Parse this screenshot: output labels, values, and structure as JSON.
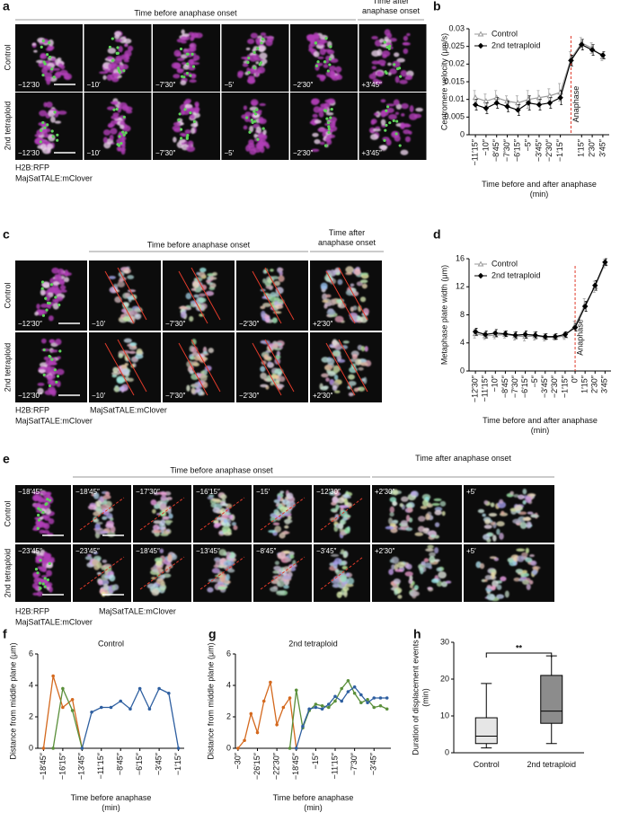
{
  "panel_letters": [
    "a",
    "b",
    "c",
    "d",
    "e",
    "f",
    "g",
    "h"
  ],
  "panel_a": {
    "header_before": "Time before anaphase onset",
    "header_after": "Time after anaphase onset",
    "rows": [
      "Control",
      "2nd tetraploid"
    ],
    "times": [
      [
        "−12′30",
        "−10′",
        "−7′30″",
        "−5′",
        "−2′30″",
        "+3′45″"
      ],
      [
        "−12′30",
        "−10′",
        "−7′30″",
        "−5′",
        "−2′30″",
        "+3′45″"
      ]
    ],
    "legend": [
      "H2B:RFP",
      "MajSatTALE:mClover"
    ]
  },
  "panel_c": {
    "header_before": "Time before anaphase onset",
    "header_after": "Time after anaphase onset",
    "rows": [
      "Control",
      "2nd tetraploid"
    ],
    "times": [
      [
        "−12′30″",
        "−10′",
        "−7′30″",
        "−2′30″",
        "+2′30″"
      ],
      [
        "−12′30″",
        "−10′",
        "−7′30″",
        "−2′30″",
        "+2′30″"
      ]
    ],
    "legend": [
      "H2B:RFP",
      "MajSatTALE:mClover",
      "MajSatTALE:mClover"
    ]
  },
  "panel_e": {
    "header_before": "Time before anaphase onset",
    "header_after": "Time after anaphase onset",
    "rows": [
      "Control",
      "2nd tetraploid"
    ],
    "times": [
      [
        "−18′45″",
        "−18′45″",
        "−17′30″",
        "−16′15″",
        "−15′",
        "−12′30″",
        "+2′30″",
        "+5′"
      ],
      [
        "−23′45″",
        "−23′45″",
        "−18′45″",
        "−13′45″",
        "−8′45″",
        "−3′45″",
        "+2′30″",
        "+5′"
      ]
    ],
    "legend": [
      "H2B:RFP",
      "MajSatTALE:mClover",
      "MajSatTALE:mClover"
    ]
  },
  "chart_data": [
    {
      "type": "line",
      "y_label": "Centromere velocity (μm/s)",
      "x_label": "Time before and after anaphase (min)",
      "annotation": "Anaphase",
      "legend": "top-left",
      "x": [
        -11.25,
        -10,
        -8.75,
        -7.5,
        -6.25,
        -5,
        -3.75,
        -2.5,
        -1.25,
        0,
        1.25,
        2.5,
        3.75
      ],
      "xlim": [
        -12,
        4.5
      ],
      "xticks": [
        {
          "value": -11.25,
          "label": "−11′15″"
        },
        {
          "value": -10,
          "label": "−10″"
        },
        {
          "value": -8.75,
          "label": "−8′45″"
        },
        {
          "value": -7.5,
          "label": "−7′30″"
        },
        {
          "value": -6.25,
          "label": "−6′15″"
        },
        {
          "value": -5,
          "label": "−5″"
        },
        {
          "value": -3.75,
          "label": "−3′45″"
        },
        {
          "value": -2.5,
          "label": "−2′30″"
        },
        {
          "value": -1.25,
          "label": "−1′15″"
        },
        {
          "value": 1.25,
          "label": "1′15″"
        },
        {
          "value": 2.5,
          "label": "2′30″"
        },
        {
          "value": 3.75,
          "label": "3′45″"
        }
      ],
      "ylim": [
        0,
        0.03
      ],
      "yticks": [
        0,
        0.005,
        0.01,
        0.015,
        0.02,
        0.025,
        0.03
      ],
      "series": [
        {
          "name": "Control",
          "color": "#9a9a9a",
          "marker": "triangle",
          "values": [
            0.0105,
            0.0095,
            0.0105,
            0.0095,
            0.009,
            0.01,
            0.0105,
            0.011,
            0.012,
            0.0215,
            0.026,
            0.0245,
            0.022
          ],
          "errors": [
            0.002,
            0.002,
            0.002,
            0.0015,
            0.002,
            0.0025,
            0.002,
            0.002,
            0.0025,
            0.002,
            0.0015,
            0.0015,
            0.001
          ]
        },
        {
          "name": "2nd tetraploid",
          "color": "#000000",
          "marker": "diamond",
          "values": [
            0.0085,
            0.0075,
            0.009,
            0.008,
            0.007,
            0.009,
            0.0085,
            0.009,
            0.0105,
            0.021,
            0.0255,
            0.024,
            0.0225
          ],
          "errors": [
            0.0015,
            0.0015,
            0.0015,
            0.0015,
            0.0015,
            0.002,
            0.0015,
            0.0015,
            0.002,
            0.0015,
            0.0015,
            0.0015,
            0.001
          ]
        }
      ]
    },
    {
      "type": "line",
      "y_label": "Metaphase plate width (μm)",
      "x_label": "Time before and after anaphase (min)",
      "annotation": "Anaphase",
      "legend": "top-left",
      "x": [
        -12.5,
        -11.25,
        -10,
        -8.75,
        -7.5,
        -6.25,
        -5,
        -3.75,
        -2.5,
        -1.25,
        0,
        1.25,
        2.5,
        3.75
      ],
      "xlim": [
        -13.3,
        4.5
      ],
      "xticks": [
        {
          "value": -12.5,
          "label": "−12′30″"
        },
        {
          "value": -11.25,
          "label": "−11′15″"
        },
        {
          "value": -10,
          "label": "−10″"
        },
        {
          "value": -8.75,
          "label": "−8′45″"
        },
        {
          "value": -7.5,
          "label": "−7′30″"
        },
        {
          "value": -6.25,
          "label": "−6′15″"
        },
        {
          "value": -5,
          "label": "−5″"
        },
        {
          "value": -3.75,
          "label": "−3′45″"
        },
        {
          "value": -2.5,
          "label": "−2′30″"
        },
        {
          "value": -1.25,
          "label": "−1′15″"
        },
        {
          "value": 0,
          "label": "0″"
        },
        {
          "value": 1.25,
          "label": "1′15″"
        },
        {
          "value": 2.5,
          "label": "2′30″"
        },
        {
          "value": 3.75,
          "label": "3′45″"
        }
      ],
      "ylim": [
        0,
        16
      ],
      "yticks": [
        0,
        4,
        8,
        12,
        16
      ],
      "series": [
        {
          "name": "Control",
          "color": "#9a9a9a",
          "marker": "triangle",
          "values": [
            5.3,
            5.0,
            5.1,
            5.2,
            5.0,
            4.9,
            5.0,
            4.8,
            4.8,
            5.0,
            6.5,
            9.5,
            12.0,
            15.3
          ],
          "errors": [
            0.6,
            0.5,
            0.5,
            0.5,
            0.6,
            0.6,
            0.6,
            0.5,
            0.4,
            0.5,
            0.6,
            0.8,
            0.8,
            0.6
          ]
        },
        {
          "name": "2nd tetraploid",
          "color": "#000000",
          "marker": "diamond",
          "values": [
            5.6,
            5.2,
            5.4,
            5.3,
            5.1,
            5.2,
            5.1,
            4.9,
            4.9,
            5.2,
            6.2,
            9.2,
            12.2,
            15.5
          ],
          "errors": [
            0.5,
            0.5,
            0.5,
            0.4,
            0.5,
            0.5,
            0.5,
            0.4,
            0.4,
            0.4,
            0.5,
            0.7,
            0.7,
            0.5
          ]
        }
      ]
    },
    {
      "type": "line",
      "title": "Control",
      "y_label": "Distance from middle plane (μm)",
      "x_label": "Time before anaphase (min)",
      "x": [
        -18.75,
        -17.5,
        -16.25,
        -15,
        -13.75,
        -12.5,
        -11.25,
        -10,
        -8.75,
        -7.5,
        -6.25,
        -5,
        -3.75,
        -2.5,
        -1.25
      ],
      "xlim": [
        -19.5,
        -0.5
      ],
      "xticks": [
        {
          "value": -18.75,
          "label": "−18′45″"
        },
        {
          "value": -16.25,
          "label": "−16′15″"
        },
        {
          "value": -13.75,
          "label": "−13′45″"
        },
        {
          "value": -11.25,
          "label": "−11′15″"
        },
        {
          "value": -8.75,
          "label": "−8′45″"
        },
        {
          "value": -6.25,
          "label": "−6′15″"
        },
        {
          "value": -3.75,
          "label": "−3′45″"
        },
        {
          "value": -1.25,
          "label": "−1′15″"
        }
      ],
      "ylim": [
        0,
        6
      ],
      "yticks": [
        0,
        2,
        4,
        6
      ],
      "series": [
        {
          "color": "#d4691e",
          "marker": "dot",
          "values": [
            0,
            4.6,
            2.6,
            3.1,
            0,
            null,
            null,
            null,
            null,
            null,
            null,
            null,
            null,
            null,
            null
          ]
        },
        {
          "color": "#5a8f3a",
          "marker": "dot",
          "values": [
            null,
            0,
            3.8,
            2.4,
            0,
            null,
            null,
            null,
            null,
            null,
            null,
            null,
            null,
            null,
            null
          ]
        },
        {
          "color": "#2e5fa0",
          "marker": "dot",
          "values": [
            null,
            null,
            null,
            null,
            0,
            2.3,
            2.6,
            2.6,
            3.0,
            2.5,
            3.8,
            2.5,
            3.8,
            3.5,
            0
          ]
        }
      ]
    },
    {
      "type": "line",
      "title": "2nd tetraploid",
      "y_label": "Distance from middle plane (μm)",
      "x_label": "Time before anaphase (min)",
      "x": [
        -30,
        -28.75,
        -27.5,
        -26.25,
        -25,
        -23.75,
        -22.5,
        -21.25,
        -20,
        -18.75,
        -17.5,
        -16.25,
        -15,
        -13.75,
        -12.5,
        -11.25,
        -10,
        -8.75,
        -7.5,
        -6.25,
        -5,
        -3.75,
        -2.5,
        -1.25
      ],
      "xlim": [
        -30.5,
        -0.5
      ],
      "xticks": [
        {
          "value": -30,
          "label": "−30″"
        },
        {
          "value": -26.25,
          "label": "−26′15″"
        },
        {
          "value": -22.5,
          "label": "−22′30″"
        },
        {
          "value": -18.75,
          "label": "−18′45″"
        },
        {
          "value": -15,
          "label": "−15″"
        },
        {
          "value": -11.25,
          "label": "−11′15″"
        },
        {
          "value": -7.5,
          "label": "−7′30″"
        },
        {
          "value": -3.75,
          "label": "−3′45″"
        }
      ],
      "ylim": [
        0,
        6
      ],
      "yticks": [
        0,
        2,
        4,
        6
      ],
      "series": [
        {
          "color": "#d4691e",
          "marker": "dot",
          "values": [
            0,
            0.5,
            2.2,
            1.0,
            3.0,
            4.2,
            1.5,
            2.6,
            3.2,
            0,
            null,
            null,
            null,
            null,
            null,
            null,
            null,
            null,
            null,
            null,
            null,
            null,
            null,
            null
          ]
        },
        {
          "color": "#5a8f3a",
          "marker": "dot",
          "values": [
            null,
            null,
            null,
            null,
            null,
            null,
            null,
            null,
            0,
            3.7,
            1.3,
            2.4,
            2.8,
            2.7,
            2.6,
            3.0,
            3.8,
            4.3,
            3.5,
            2.9,
            3.1,
            2.6,
            2.7,
            2.5
          ]
        },
        {
          "color": "#2e5fa0",
          "marker": "dot",
          "values": [
            null,
            null,
            null,
            null,
            null,
            null,
            null,
            null,
            null,
            0,
            1.4,
            2.5,
            2.6,
            2.5,
            2.8,
            3.3,
            3.0,
            3.6,
            3.9,
            3.4,
            2.9,
            3.2,
            3.2,
            3.2
          ]
        }
      ]
    },
    {
      "type": "box",
      "y_label": "Duration of displacement events (min)",
      "annotation": "**",
      "categories": [
        "Control",
        "2nd tetraploid"
      ],
      "colors": [
        "#e6e6e6",
        "#8c8c8c"
      ],
      "boxes": [
        {
          "whislo": 1.3,
          "q1": 2.5,
          "med": 4.5,
          "q3": 9.5,
          "whishi": 18.8
        },
        {
          "whislo": 2.5,
          "q1": 8,
          "med": 11.3,
          "q3": 21,
          "whishi": 26.3
        }
      ],
      "ylim": [
        0,
        30
      ],
      "yticks": [
        0,
        10,
        20,
        30
      ]
    }
  ]
}
